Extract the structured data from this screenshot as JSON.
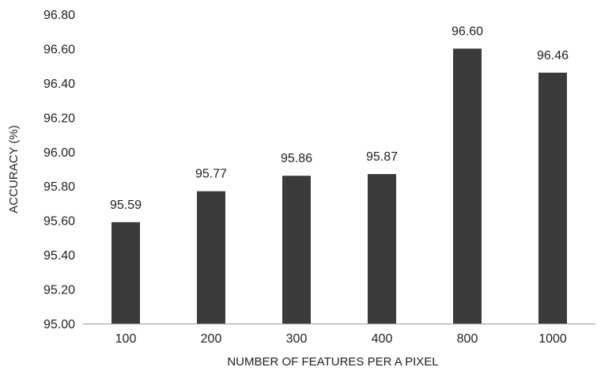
{
  "chart_data": {
    "type": "bar",
    "title": "",
    "xlabel": "NUMBER OF FEATURES PER A PIXEL",
    "ylabel": "ACCURACY (%)",
    "categories": [
      "100",
      "200",
      "300",
      "400",
      "800",
      "1000"
    ],
    "values": [
      95.59,
      95.77,
      95.86,
      95.87,
      96.6,
      96.46
    ],
    "data_labels": [
      "95.59",
      "95.77",
      "95.86",
      "95.87",
      "96.60",
      "96.46"
    ],
    "ylim": [
      95.0,
      96.8
    ],
    "yticks": [
      95.0,
      95.2,
      95.4,
      95.6,
      95.8,
      96.0,
      96.2,
      96.4,
      96.6,
      96.8
    ],
    "ytick_labels": [
      "95.00",
      "95.20",
      "95.40",
      "95.60",
      "95.80",
      "96.00",
      "96.20",
      "96.40",
      "96.60",
      "96.80"
    ],
    "grid": false,
    "legend": "none",
    "bar_color": "#3b3b3b",
    "axis_color": "#9a9a9a"
  }
}
